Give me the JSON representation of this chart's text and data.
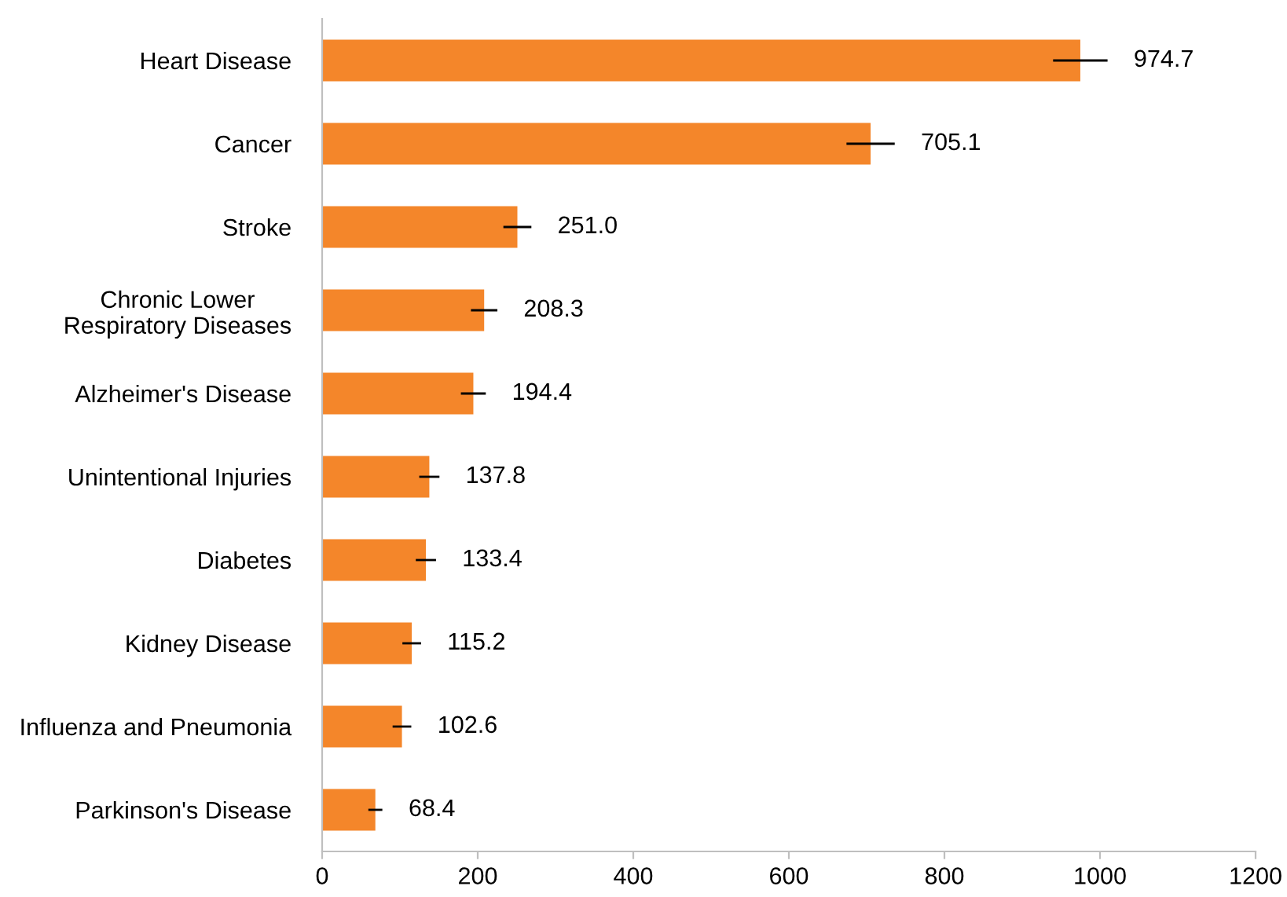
{
  "chart_data": {
    "type": "bar",
    "orientation": "horizontal",
    "categories": [
      "Heart Disease",
      "Cancer",
      "Stroke",
      "Chronic Lower\nRespiratory Diseases",
      "Alzheimer's Disease",
      "Unintentional Injuries",
      "Diabetes",
      "Kidney Disease",
      "Influenza and Pneumonia",
      "Parkinson's Disease"
    ],
    "values": [
      974.7,
      705.1,
      251.0,
      208.3,
      194.4,
      137.8,
      133.4,
      115.2,
      102.6,
      68.4
    ],
    "errors": [
      35,
      31,
      18,
      17,
      16,
      13,
      13,
      12,
      12,
      9
    ],
    "value_labels": [
      "974.7",
      "705.1",
      "251.0",
      "208.3",
      "194.4",
      "137.8",
      "133.4",
      "115.2",
      "102.6",
      "68.4"
    ],
    "color": "#f4862a",
    "xlim": [
      0,
      1200
    ],
    "xticks": [
      0,
      200,
      400,
      600,
      800,
      1000,
      1200
    ],
    "grid": false,
    "legend": false
  }
}
